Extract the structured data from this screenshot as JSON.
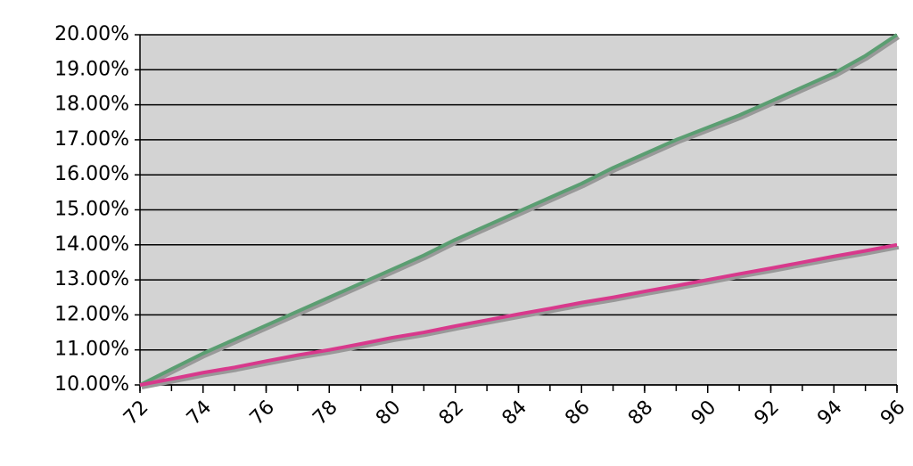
{
  "chart_data": {
    "type": "line",
    "x": [
      72,
      73,
      74,
      75,
      76,
      77,
      78,
      79,
      80,
      81,
      82,
      83,
      84,
      85,
      86,
      87,
      88,
      89,
      90,
      91,
      92,
      93,
      94,
      95,
      96
    ],
    "series": [
      {
        "color": "#5b9e72",
        "values": [
          10,
          10.45,
          10.9,
          11.3,
          11.7,
          12.1,
          12.5,
          12.9,
          13.3,
          13.7,
          14.15,
          14.55,
          14.95,
          15.35,
          15.75,
          16.2,
          16.6,
          17.0,
          17.35,
          17.7,
          18.1,
          18.5,
          18.9,
          19.4,
          20
        ]
      },
      {
        "color": "#d8398c",
        "values": [
          10,
          10.17,
          10.35,
          10.5,
          10.68,
          10.85,
          11.0,
          11.17,
          11.35,
          11.5,
          11.68,
          11.85,
          12.02,
          12.18,
          12.35,
          12.5,
          12.67,
          12.83,
          13.0,
          13.17,
          13.33,
          13.5,
          13.67,
          13.83,
          14
        ]
      }
    ],
    "xlim": [
      72,
      96
    ],
    "xticks": [
      72,
      74,
      76,
      78,
      80,
      82,
      84,
      86,
      88,
      90,
      92,
      94,
      96
    ],
    "ylim": [
      10,
      20
    ],
    "yticks": [
      {
        "value": 10,
        "label": "10.00%"
      },
      {
        "value": 11,
        "label": "11.00%"
      },
      {
        "value": 12,
        "label": "12.00%"
      },
      {
        "value": 13,
        "label": "13.00%"
      },
      {
        "value": 14,
        "label": "14.00%"
      },
      {
        "value": 15,
        "label": "15.00%"
      },
      {
        "value": 16,
        "label": "16.00%"
      },
      {
        "value": 17,
        "label": "17.00%"
      },
      {
        "value": 18,
        "label": "18.00%"
      },
      {
        "value": 19,
        "label": "19.00%"
      },
      {
        "value": 20,
        "label": "20.00%"
      }
    ],
    "grid": true
  }
}
